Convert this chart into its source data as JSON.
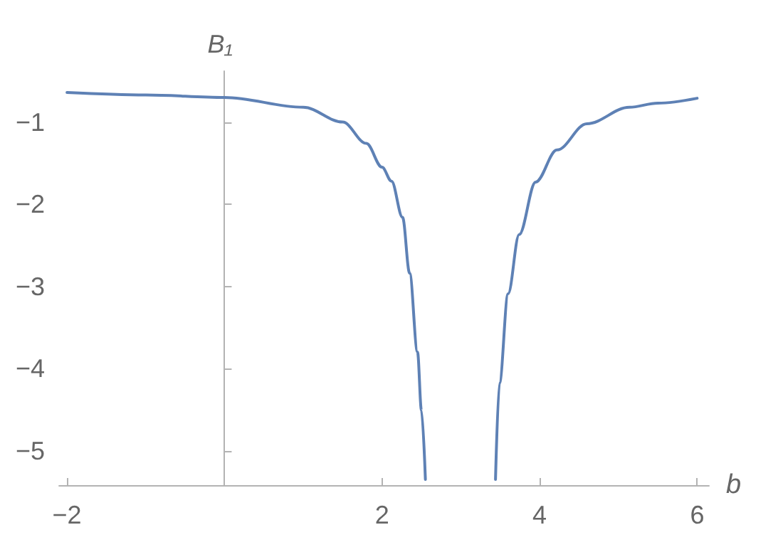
{
  "chart_data": {
    "type": "line",
    "xlabel": "b",
    "ylabel": "B₁",
    "x": [
      -2,
      -1,
      0,
      1,
      1.5,
      1.8,
      2,
      2.12,
      2.26,
      2.35,
      2.45,
      2.5,
      2.55,
      3,
      3.44,
      3.49,
      3.6,
      3.74,
      3.95,
      4.22,
      4.6,
      5.14,
      5.5,
      6
    ],
    "series": [
      {
        "color": "#5e81b5",
        "values": [
          -0.64,
          -0.67,
          -0.7,
          -0.82,
          -1.0,
          -1.26,
          -1.55,
          -1.72,
          -2.16,
          -2.84,
          -3.8,
          -4.51,
          -5.35,
          null,
          -5.35,
          -4.18,
          -3.09,
          -2.37,
          -1.73,
          -1.34,
          -1.02,
          -0.82,
          -0.77,
          -0.71
        ]
      }
    ],
    "xlim": [
      -2.1,
      6.15
    ],
    "ylim": [
      -5.42,
      -0.38
    ],
    "xticks": [
      {
        "value": -2,
        "label": "−2"
      },
      {
        "value": 0,
        "label": null
      },
      2,
      4,
      6
    ],
    "yticks": [
      {
        "value": -1,
        "label": "−1"
      },
      {
        "value": -2,
        "label": "−2"
      },
      {
        "value": -3,
        "label": "−3"
      },
      {
        "value": -4,
        "label": "−4"
      },
      {
        "value": -5,
        "label": "−5"
      }
    ],
    "marker": "none",
    "line_style": "solid"
  }
}
